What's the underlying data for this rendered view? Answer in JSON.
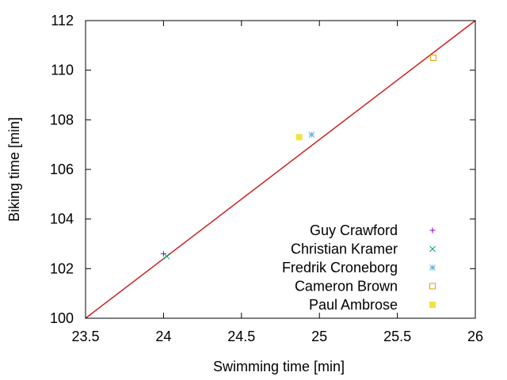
{
  "chart_data": {
    "type": "scatter",
    "title": "",
    "xlabel": "Swimming time [min]",
    "ylabel": "Biking time [min]",
    "xlim": [
      23.5,
      26
    ],
    "ylim": [
      100,
      112
    ],
    "xticks": [
      23.5,
      24,
      24.5,
      25,
      25.5,
      26
    ],
    "yticks": [
      100,
      102,
      104,
      106,
      108,
      110,
      112
    ],
    "xtick_labels": [
      "23.5",
      "24",
      "24.5",
      "25",
      "25.5",
      "26"
    ],
    "ytick_labels": [
      "100",
      "102",
      "104",
      "106",
      "108",
      "110",
      "112"
    ],
    "grid": false,
    "legend_position": "bottom-right",
    "reference_line": {
      "from": [
        23.5,
        100
      ],
      "to": [
        26,
        112
      ],
      "color": "#cc2222"
    },
    "series": [
      {
        "name": "Guy Crawford",
        "marker": "plus",
        "color": "#9400d3",
        "x": [
          24.0
        ],
        "y": [
          102.6
        ]
      },
      {
        "name": "Christian Kramer",
        "marker": "cross",
        "color": "#009e73",
        "x": [
          24.02
        ],
        "y": [
          102.5
        ]
      },
      {
        "name": "Fredrik Croneborg",
        "marker": "star",
        "color": "#56b4e9",
        "x": [
          24.95
        ],
        "y": [
          107.4
        ]
      },
      {
        "name": "Cameron Brown",
        "marker": "square-open",
        "color": "#e69f00",
        "x": [
          25.73
        ],
        "y": [
          110.5
        ]
      },
      {
        "name": "Paul Ambrose",
        "marker": "square-filled",
        "color": "#f0e442",
        "x": [
          24.87
        ],
        "y": [
          107.3
        ]
      }
    ]
  }
}
